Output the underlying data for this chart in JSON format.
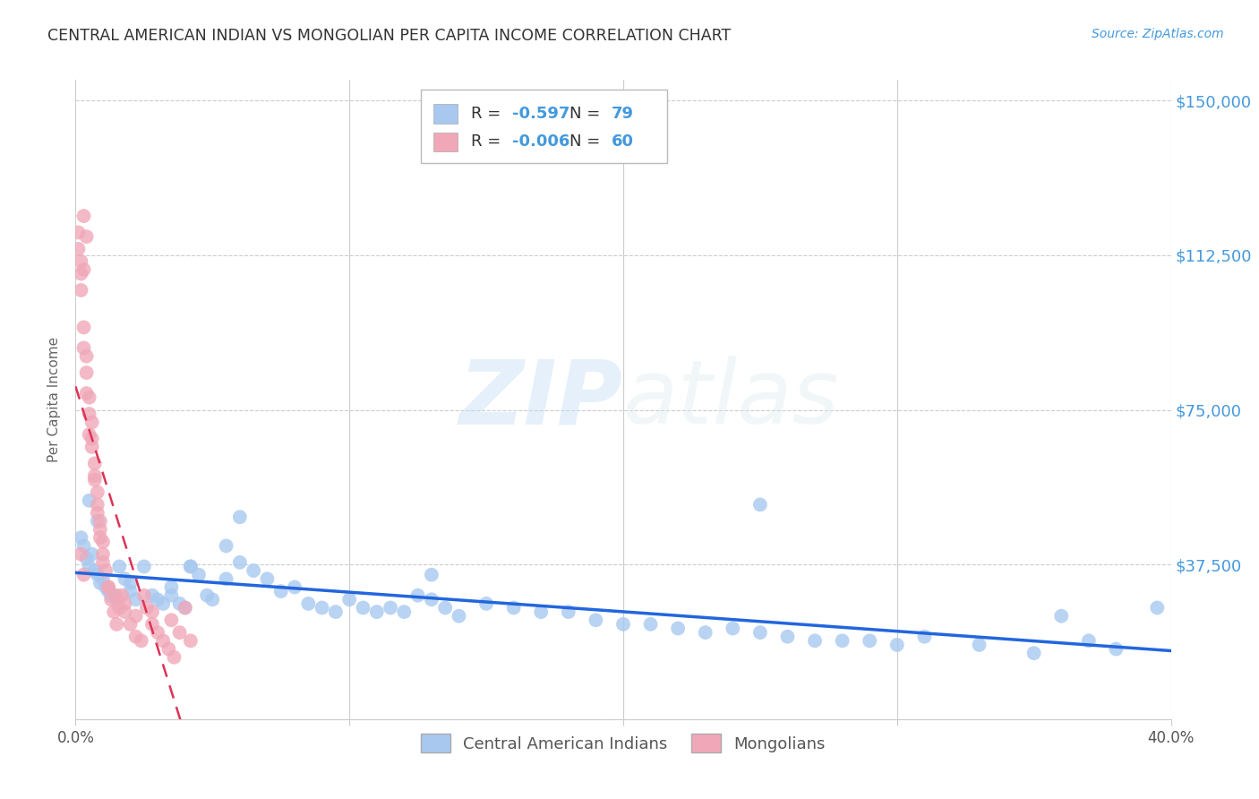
{
  "title": "CENTRAL AMERICAN INDIAN VS MONGOLIAN PER CAPITA INCOME CORRELATION CHART",
  "source": "Source: ZipAtlas.com",
  "ylabel": "Per Capita Income",
  "yticks": [
    0,
    37500,
    75000,
    112500,
    150000
  ],
  "ytick_labels": [
    "",
    "$37,500",
    "$75,000",
    "$112,500",
    "$150,000"
  ],
  "xmin": 0.0,
  "xmax": 0.4,
  "ymin": 0,
  "ymax": 155000,
  "blue_R": "-0.597",
  "blue_N": "79",
  "pink_R": "-0.006",
  "pink_N": "60",
  "blue_color": "#a8c8f0",
  "pink_color": "#f0a8b8",
  "blue_line_color": "#2266dd",
  "pink_line_color": "#dd3355",
  "legend_blue_label": "Central American Indians",
  "legend_pink_label": "Mongolians",
  "watermark_zip": "ZIP",
  "watermark_atlas": "atlas",
  "title_color": "#333333",
  "axis_color": "#4499dd",
  "blue_x": [
    0.002,
    0.003,
    0.004,
    0.005,
    0.006,
    0.007,
    0.008,
    0.009,
    0.01,
    0.011,
    0.012,
    0.013,
    0.014,
    0.015,
    0.016,
    0.018,
    0.02,
    0.022,
    0.025,
    0.028,
    0.03,
    0.032,
    0.035,
    0.038,
    0.04,
    0.042,
    0.045,
    0.048,
    0.05,
    0.055,
    0.06,
    0.065,
    0.07,
    0.075,
    0.08,
    0.085,
    0.09,
    0.095,
    0.1,
    0.105,
    0.11,
    0.115,
    0.12,
    0.125,
    0.13,
    0.135,
    0.14,
    0.15,
    0.16,
    0.17,
    0.18,
    0.19,
    0.2,
    0.21,
    0.22,
    0.23,
    0.24,
    0.25,
    0.26,
    0.27,
    0.28,
    0.29,
    0.3,
    0.31,
    0.33,
    0.35,
    0.36,
    0.37,
    0.38,
    0.395,
    0.005,
    0.008,
    0.042,
    0.06,
    0.13,
    0.25,
    0.02,
    0.035,
    0.055
  ],
  "blue_y": [
    44000,
    42000,
    39000,
    37000,
    40000,
    36000,
    35000,
    33000,
    34000,
    32000,
    31000,
    30000,
    30000,
    29000,
    37000,
    34000,
    31000,
    29000,
    37000,
    30000,
    29000,
    28000,
    30000,
    28000,
    27000,
    37000,
    35000,
    30000,
    29000,
    42000,
    38000,
    36000,
    34000,
    31000,
    32000,
    28000,
    27000,
    26000,
    29000,
    27000,
    26000,
    27000,
    26000,
    30000,
    29000,
    27000,
    25000,
    28000,
    27000,
    26000,
    26000,
    24000,
    23000,
    23000,
    22000,
    21000,
    22000,
    21000,
    20000,
    19000,
    19000,
    19000,
    18000,
    20000,
    18000,
    16000,
    25000,
    19000,
    17000,
    27000,
    53000,
    48000,
    37000,
    49000,
    35000,
    52000,
    33000,
    32000,
    34000
  ],
  "pink_x": [
    0.001,
    0.001,
    0.002,
    0.002,
    0.003,
    0.003,
    0.004,
    0.004,
    0.005,
    0.005,
    0.006,
    0.006,
    0.007,
    0.007,
    0.008,
    0.008,
    0.009,
    0.009,
    0.01,
    0.01,
    0.011,
    0.012,
    0.013,
    0.014,
    0.015,
    0.016,
    0.017,
    0.018,
    0.02,
    0.022,
    0.024,
    0.026,
    0.028,
    0.03,
    0.032,
    0.034,
    0.036,
    0.038,
    0.04,
    0.042,
    0.003,
    0.004,
    0.002,
    0.003,
    0.004,
    0.005,
    0.006,
    0.007,
    0.008,
    0.009,
    0.002,
    0.003,
    0.01,
    0.012,
    0.015,
    0.018,
    0.022,
    0.025,
    0.028,
    0.035
  ],
  "pink_y": [
    118000,
    114000,
    108000,
    104000,
    95000,
    90000,
    84000,
    79000,
    74000,
    69000,
    66000,
    68000,
    62000,
    59000,
    55000,
    50000,
    46000,
    48000,
    43000,
    38000,
    36000,
    32000,
    29000,
    26000,
    23000,
    27000,
    30000,
    26000,
    23000,
    20000,
    19000,
    27000,
    23000,
    21000,
    19000,
    17000,
    15000,
    21000,
    27000,
    19000,
    122000,
    117000,
    111000,
    109000,
    88000,
    78000,
    72000,
    58000,
    52000,
    44000,
    40000,
    35000,
    40000,
    32000,
    30000,
    28000,
    25000,
    30000,
    26000,
    24000
  ]
}
